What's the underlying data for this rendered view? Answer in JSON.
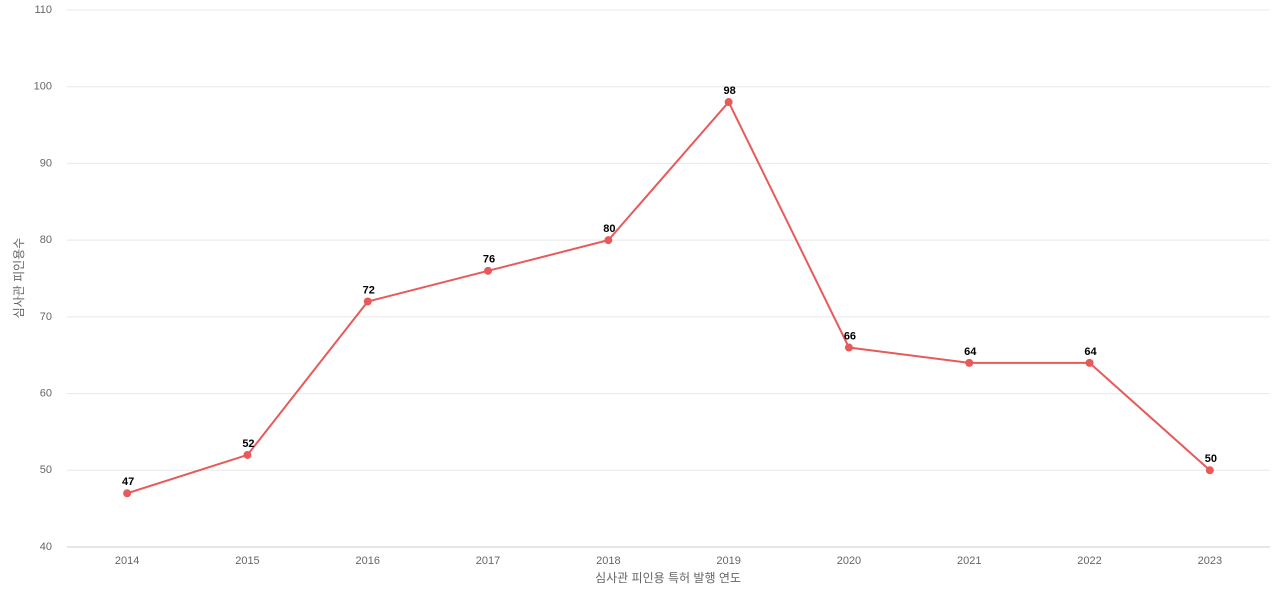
{
  "chart_data": {
    "type": "line",
    "x_label": "심사관 피인용 특허 발행 연도",
    "y_label": "심사관 피인용수",
    "categories": [
      "2014",
      "2015",
      "2016",
      "2017",
      "2018",
      "2019",
      "2020",
      "2021",
      "2022",
      "2023"
    ],
    "values": [
      47,
      52,
      72,
      76,
      80,
      98,
      66,
      64,
      64,
      50
    ],
    "color": "#e85a5a",
    "ylim": [
      40,
      110
    ],
    "yticks": [
      40,
      50,
      60,
      70,
      80,
      90,
      100,
      110
    ],
    "grid": true
  }
}
